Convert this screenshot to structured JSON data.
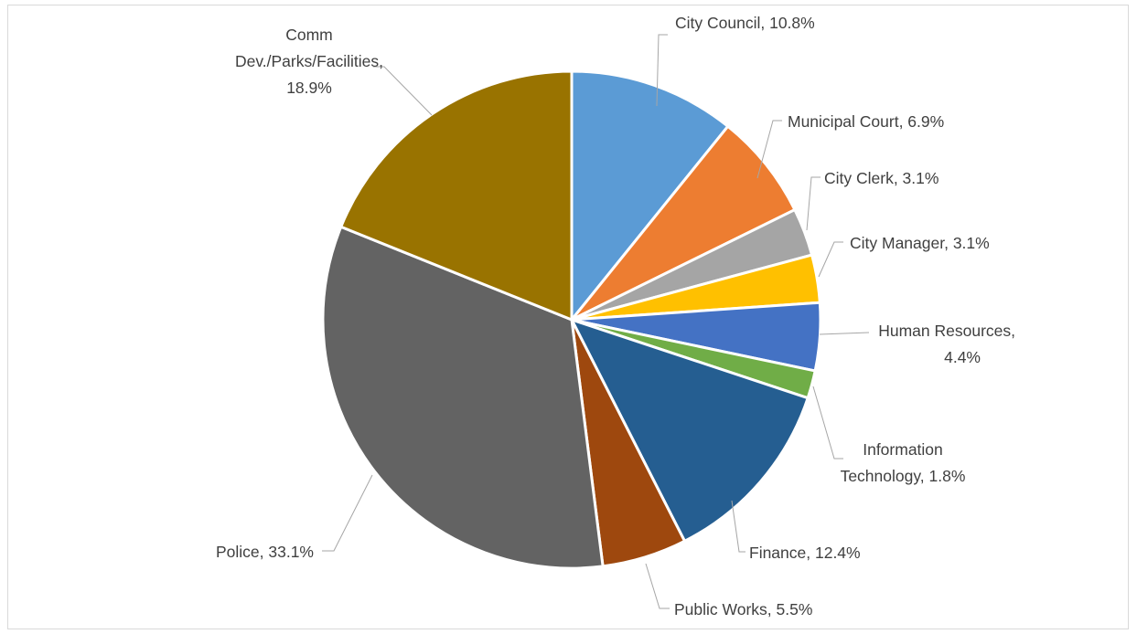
{
  "chart_data": {
    "type": "pie",
    "start_angle_deg": 0,
    "direction": "clockwise",
    "slices": [
      {
        "name": "City Council",
        "value": 10.8,
        "label": "City Council, 10.8%",
        "color": "#5B9BD5"
      },
      {
        "name": "Municipal Court",
        "value": 6.9,
        "label": "Municipal Court, 6.9%",
        "color": "#ED7D31"
      },
      {
        "name": "City Clerk",
        "value": 3.1,
        "label": "City Clerk, 3.1%",
        "color": "#A5A5A5"
      },
      {
        "name": "City Manager",
        "value": 3.1,
        "label": "City Manager, 3.1%",
        "color": "#FFC000"
      },
      {
        "name": "Human Resources",
        "value": 4.4,
        "label": "Human Resources, 4.4%",
        "color": "#4472C4"
      },
      {
        "name": "Information Technology",
        "value": 1.8,
        "label": "Information Technology, 1.8%",
        "color": "#70AD47"
      },
      {
        "name": "Finance",
        "value": 12.4,
        "label": "Finance, 12.4%",
        "color": "#255E91"
      },
      {
        "name": "Public Works",
        "value": 5.5,
        "label": "Public Works, 5.5%",
        "color": "#9E480E"
      },
      {
        "name": "Police",
        "value": 33.1,
        "label": "Police, 33.1%",
        "color": "#636363"
      },
      {
        "name": "Comm Dev./Parks/Facilities",
        "value": 18.9,
        "label": "Comm Dev./Parks/Facilities, 18.9%",
        "color": "#997300"
      }
    ]
  },
  "labels": {
    "city_council": "City Council, 10.8%",
    "municipal_court": "Municipal Court, 6.9%",
    "city_clerk": "City Clerk, 3.1%",
    "city_manager": "City Manager, 3.1%",
    "human_resources_1": "Human Resources,",
    "human_resources_2": "4.4%",
    "information_technology_1": "Information",
    "information_technology_2": "Technology, 1.8%",
    "finance": "Finance, 12.4%",
    "public_works": "Public Works, 5.5%",
    "police": "Police, 33.1%",
    "comm_dev_1": "Comm",
    "comm_dev_2": "Dev./Parks/Facilities,",
    "comm_dev_3": "18.9%"
  }
}
